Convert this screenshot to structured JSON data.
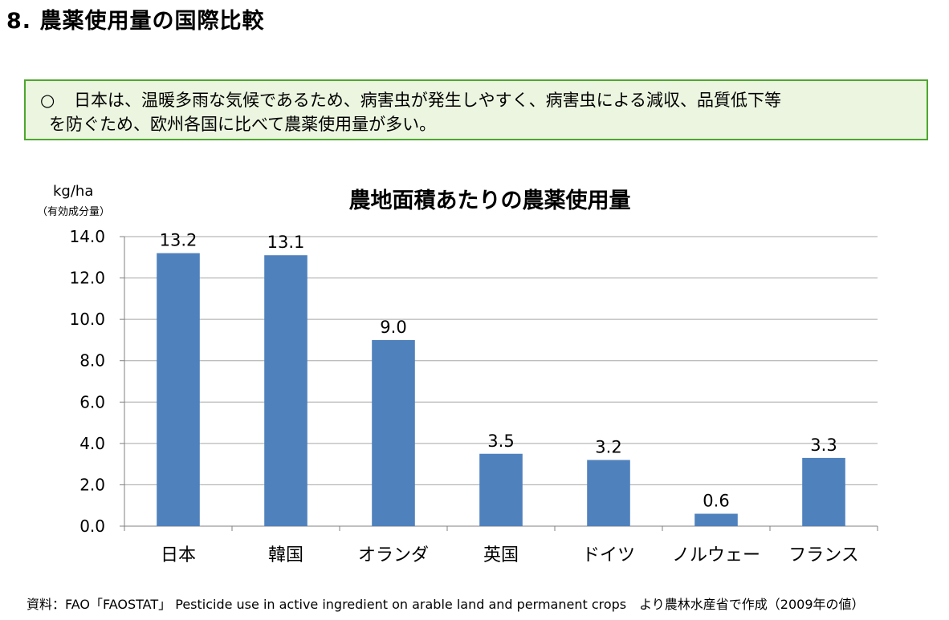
{
  "page_title": "8. 農薬使用量の国際比較",
  "summary": {
    "marker": "○",
    "line1": "日本は、温暖多雨な気候であるため、病害虫が発生しやすく、病害虫による減収、品質低下等",
    "line2": "を防ぐため、欧州各国に比べて農薬使用量が多い。"
  },
  "chart_data": {
    "type": "bar",
    "title": "農地面積あたりの農薬使用量",
    "ylabel": "kg/ha",
    "ylabel_sub": "（有効成分量）",
    "xlabel": "",
    "categories": [
      "日本",
      "韓国",
      "オランダ",
      "英国",
      "ドイツ",
      "ノルウェー",
      "フランス"
    ],
    "values": [
      13.2,
      13.1,
      9.0,
      3.5,
      3.2,
      0.6,
      3.3
    ],
    "data_labels": [
      "13.2",
      "13.1",
      "9.0",
      "3.5",
      "3.2",
      "0.6",
      "3.3"
    ],
    "ylim": [
      0,
      14
    ],
    "yticks": [
      "0.0",
      "2.0",
      "4.0",
      "6.0",
      "8.0",
      "10.0",
      "12.0",
      "14.0"
    ],
    "grid": true,
    "bar_color": "#4f81bd",
    "grid_color": "#a6a6a6"
  },
  "source_note": "資料：FAO「FAOSTAT」 Pesticide use in active ingredient on arable land and permanent crops　より農林水産省で作成（2009年の値）"
}
